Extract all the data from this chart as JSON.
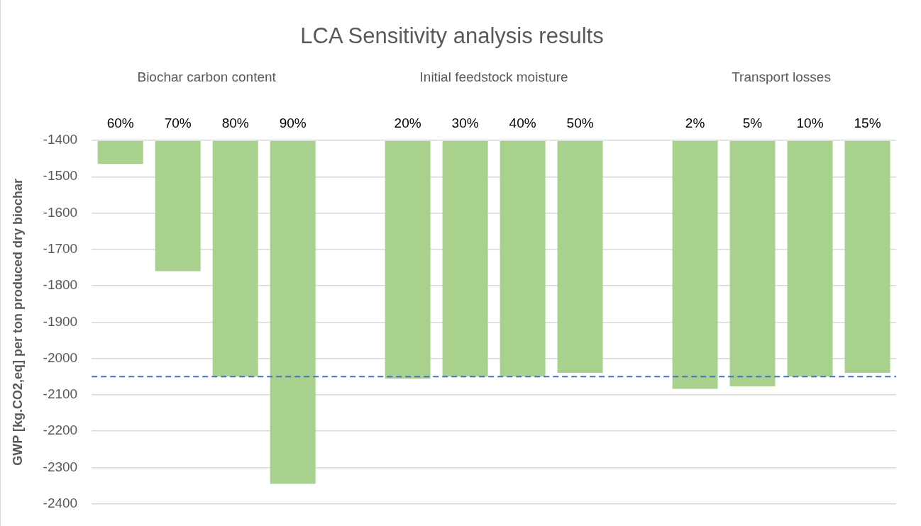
{
  "chart_data": {
    "type": "bar",
    "title": "LCA Sensitivity analysis results",
    "ylabel": "GWP [kg.CO2,eq] per ton produced dry biochar",
    "categories": [
      "60%",
      "70%",
      "80%",
      "90%",
      null,
      "20%",
      "30%",
      "40%",
      "50%",
      null,
      "2%",
      "5%",
      "10%",
      "15%"
    ],
    "values": [
      -1465,
      -1760,
      -2050,
      -2345,
      null,
      -2056,
      -2050,
      -2050,
      -2040,
      null,
      -2084,
      -2077,
      -2050,
      -2040
    ],
    "color": "#a9d18e",
    "annotations": [
      "Biochar carbon content",
      "Initial feedstock moisture",
      "Transport losses"
    ],
    "ylim": [
      -2400,
      -1400
    ],
    "yticks": [
      -2400,
      -2300,
      -2200,
      -2100,
      -2000,
      -1900,
      -1800,
      -1700,
      -1600,
      -1500,
      -1400
    ],
    "grid": "y",
    "legend": false,
    "ref_lines": [
      {
        "axis": "y",
        "value": -2050,
        "color": "#4472c4",
        "line_style": "dashed"
      }
    ]
  }
}
